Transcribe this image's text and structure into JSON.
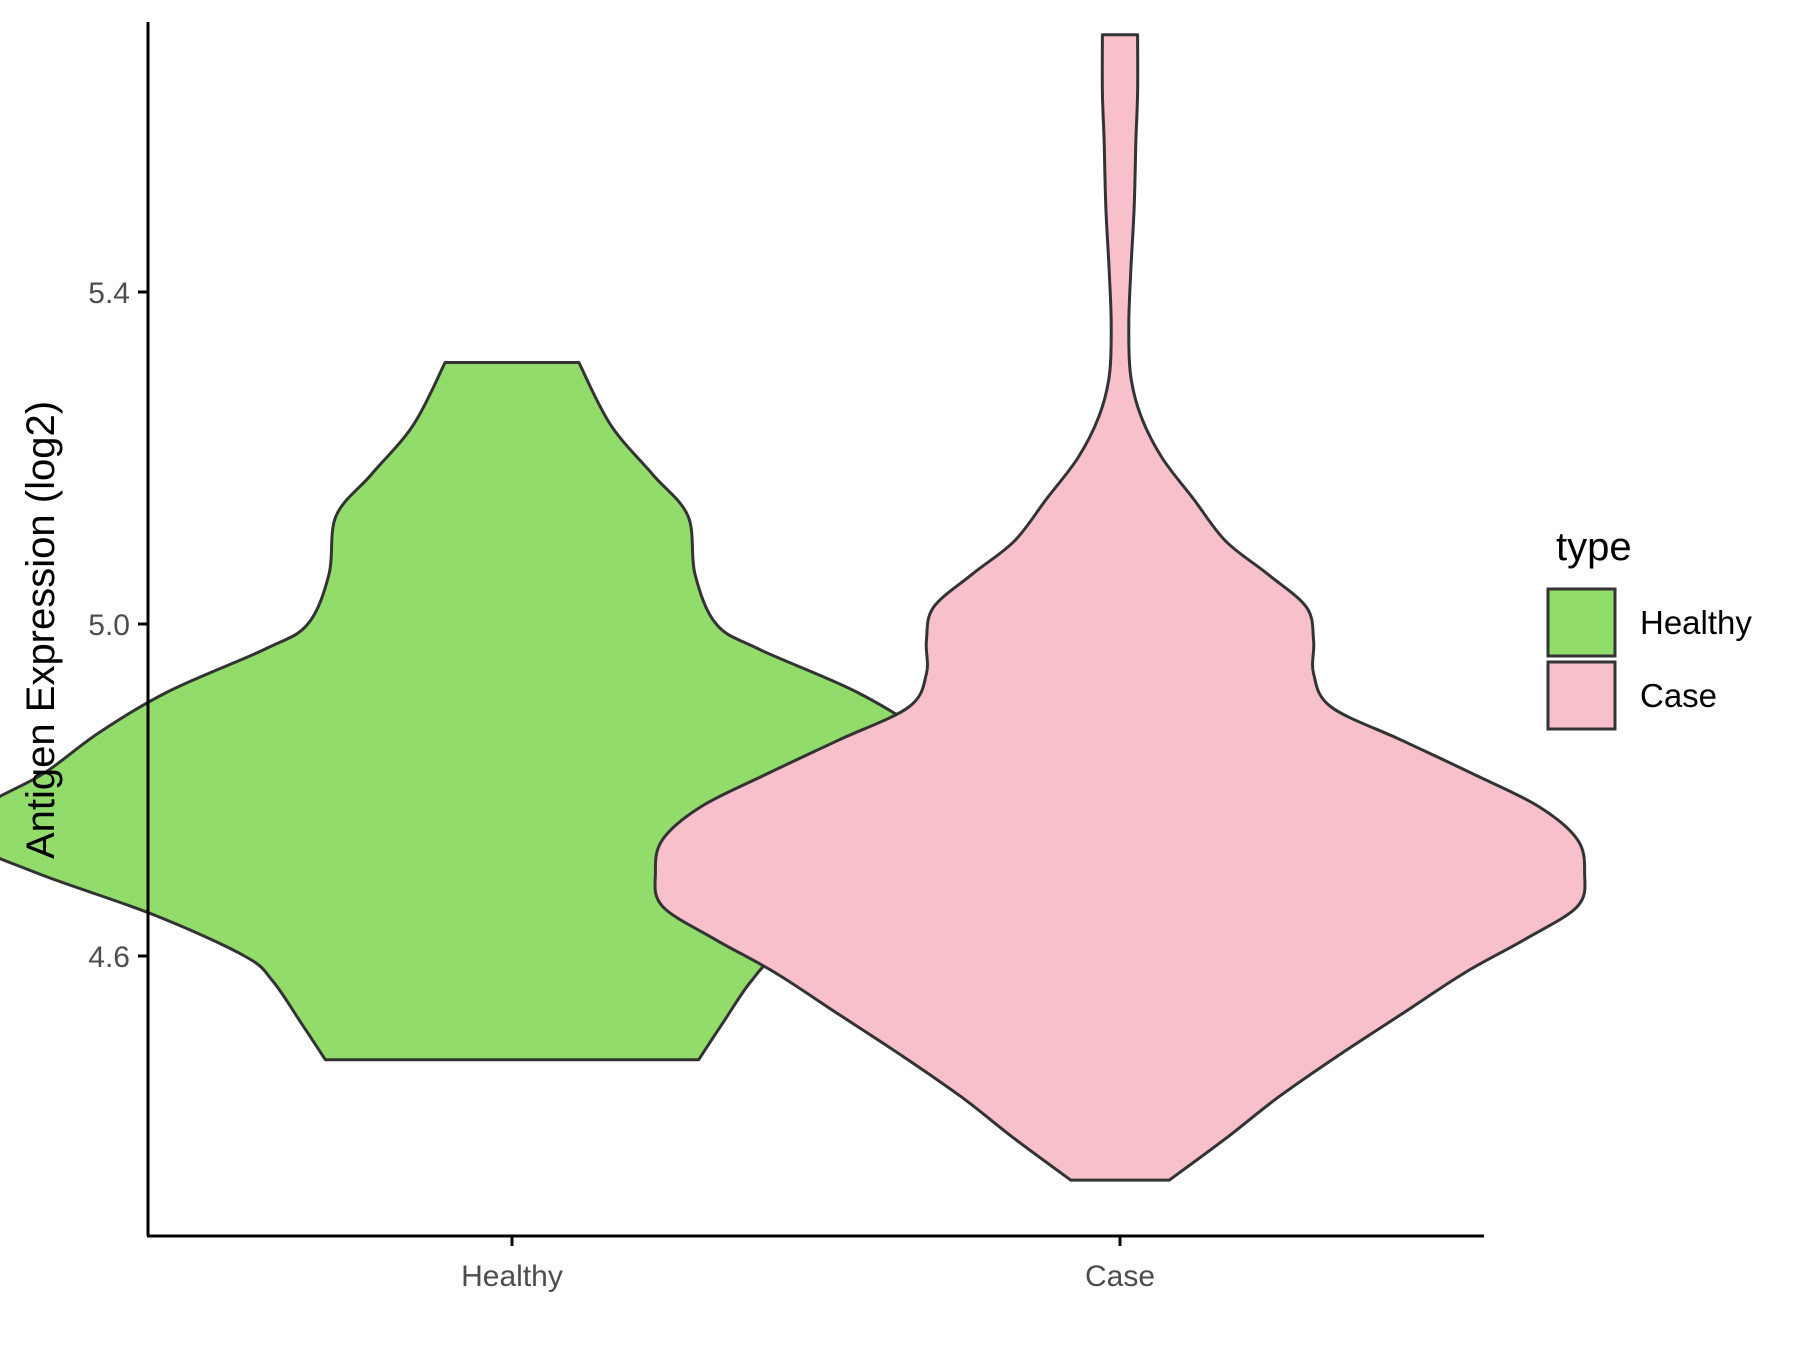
{
  "chart_data": {
    "type": "violin",
    "categories": [
      "Healthy",
      "Case"
    ],
    "ylabel": "Antigen Expression (log2)",
    "xlabel": "",
    "ylim": [
      4.3,
      5.78
    ],
    "yticks": [
      4.6,
      5.0,
      5.4
    ],
    "ytick_labels": [
      "4.6",
      "5.0",
      "5.4"
    ],
    "grid": false,
    "series": [
      {
        "name": "Healthy",
        "color": "#92dc6b",
        "min": 4.475,
        "max": 5.315,
        "density": [
          [
            4.475,
            0.53
          ],
          [
            4.52,
            0.6
          ],
          [
            4.57,
            0.68
          ],
          [
            4.6,
            0.76
          ],
          [
            4.65,
            1.02
          ],
          [
            4.7,
            1.35
          ],
          [
            4.74,
            1.55
          ],
          [
            4.78,
            1.5
          ],
          [
            4.82,
            1.33
          ],
          [
            4.87,
            1.17
          ],
          [
            4.92,
            0.97
          ],
          [
            4.97,
            0.7
          ],
          [
            5.0,
            0.58
          ],
          [
            5.06,
            0.52
          ],
          [
            5.13,
            0.5
          ],
          [
            5.18,
            0.4
          ],
          [
            5.24,
            0.28
          ],
          [
            5.315,
            0.19
          ]
        ]
      },
      {
        "name": "Case",
        "color": "#f7c0cb",
        "min": 4.33,
        "max": 5.71,
        "density": [
          [
            4.33,
            0.14
          ],
          [
            4.38,
            0.3
          ],
          [
            4.43,
            0.45
          ],
          [
            4.48,
            0.62
          ],
          [
            4.53,
            0.8
          ],
          [
            4.58,
            0.98
          ],
          [
            4.62,
            1.15
          ],
          [
            4.66,
            1.3
          ],
          [
            4.7,
            1.32
          ],
          [
            4.74,
            1.3
          ],
          [
            4.78,
            1.19
          ],
          [
            4.82,
            1.0
          ],
          [
            4.86,
            0.8
          ],
          [
            4.9,
            0.6
          ],
          [
            4.94,
            0.55
          ],
          [
            4.98,
            0.55
          ],
          [
            5.02,
            0.53
          ],
          [
            5.06,
            0.42
          ],
          [
            5.1,
            0.3
          ],
          [
            5.15,
            0.21
          ],
          [
            5.2,
            0.12
          ],
          [
            5.25,
            0.06
          ],
          [
            5.3,
            0.03
          ],
          [
            5.36,
            0.025
          ],
          [
            5.42,
            0.03
          ],
          [
            5.5,
            0.04
          ],
          [
            5.58,
            0.045
          ],
          [
            5.64,
            0.05
          ],
          [
            5.71,
            0.05
          ]
        ]
      }
    ],
    "legend": {
      "title": "type",
      "position": "right",
      "entries": [
        {
          "label": "Healthy",
          "color": "#92dc6b"
        },
        {
          "label": "Case",
          "color": "#f7c0cb"
        }
      ]
    }
  }
}
